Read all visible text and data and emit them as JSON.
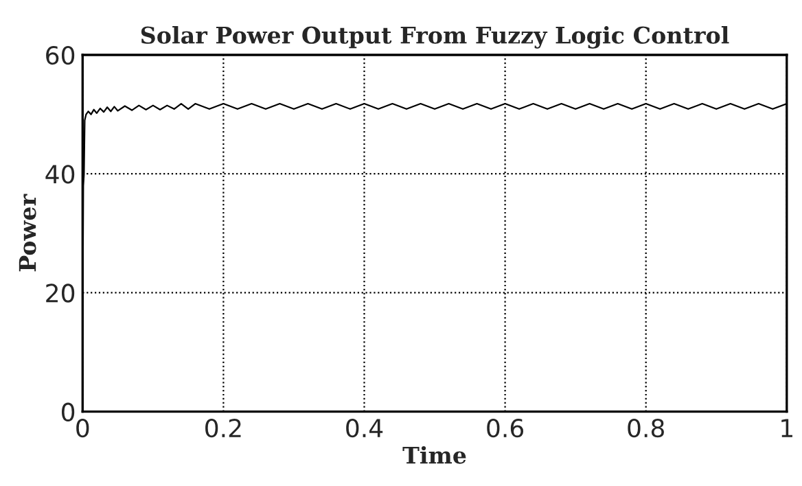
{
  "chart_data": {
    "type": "line",
    "title": "Solar Power Output From Fuzzy Logic Control",
    "xlabel": "Time",
    "ylabel": "Power",
    "xlim": [
      0,
      1
    ],
    "ylim": [
      0,
      60
    ],
    "xticks": [
      0,
      0.2,
      0.4,
      0.6,
      0.8,
      1
    ],
    "yticks": [
      0,
      20,
      40,
      60
    ],
    "grid": true,
    "line_style": "solid",
    "marker": "none",
    "series": [
      {
        "color": "#000000",
        "x": [
          0,
          0.001,
          0.002,
          0.003,
          0.005,
          0.008,
          0.012,
          0.016,
          0.02,
          0.025,
          0.03,
          0.035,
          0.04,
          0.045,
          0.05,
          0.06,
          0.07,
          0.08,
          0.09,
          0.1,
          0.11,
          0.12,
          0.13,
          0.14,
          0.15,
          0.16,
          0.18,
          0.2,
          0.22,
          0.24,
          0.26,
          0.28,
          0.3,
          0.32,
          0.34,
          0.36,
          0.38,
          0.4,
          0.42,
          0.44,
          0.46,
          0.48,
          0.5,
          0.52,
          0.54,
          0.56,
          0.58,
          0.6,
          0.62,
          0.64,
          0.66,
          0.68,
          0.7,
          0.72,
          0.74,
          0.76,
          0.78,
          0.8,
          0.82,
          0.84,
          0.86,
          0.88,
          0.9,
          0.92,
          0.94,
          0.96,
          0.98,
          1
        ],
        "values": [
          12,
          38,
          40,
          49,
          50,
          50.5,
          50,
          50.8,
          50.2,
          51,
          50.4,
          51.2,
          50.5,
          51.3,
          50.6,
          51.4,
          50.7,
          51.5,
          50.8,
          51.5,
          50.8,
          51.5,
          50.9,
          51.8,
          50.9,
          51.8,
          50.9,
          51.8,
          50.9,
          51.8,
          50.9,
          51.8,
          50.9,
          51.8,
          50.9,
          51.8,
          50.9,
          51.8,
          50.9,
          51.8,
          50.9,
          51.8,
          50.9,
          51.8,
          50.9,
          51.8,
          50.9,
          51.8,
          50.9,
          51.8,
          50.9,
          51.8,
          50.9,
          51.8,
          50.9,
          51.8,
          50.9,
          51.8,
          50.9,
          51.8,
          50.9,
          51.8,
          50.9,
          51.8,
          50.9,
          51.8,
          50.9,
          51.8
        ]
      }
    ]
  }
}
